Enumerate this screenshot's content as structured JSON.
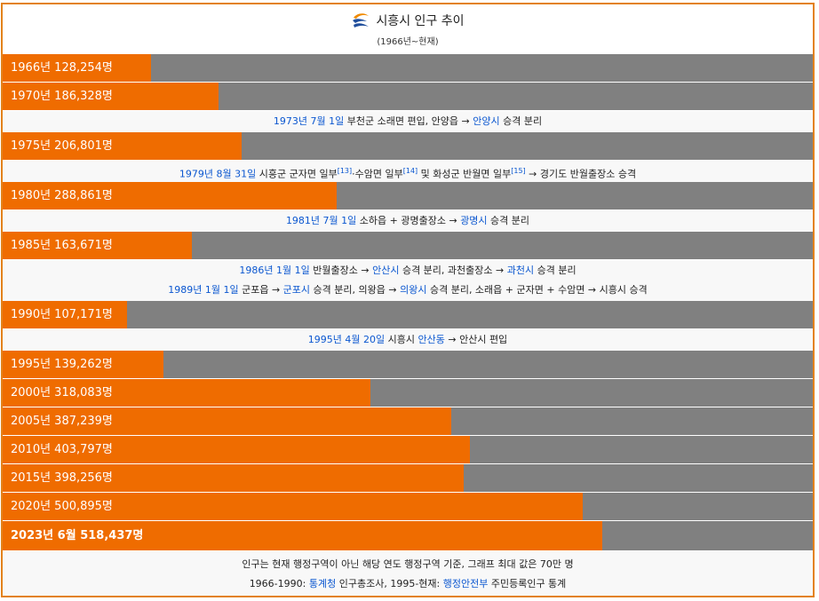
{
  "header": {
    "title": "시흥시 인구 추이",
    "subtitle": "(1966년~현재)"
  },
  "colors": {
    "bar": "#ef6c00",
    "track": "#808080",
    "link": "#0b57d0",
    "border": "#e3821a"
  },
  "chart_data": {
    "type": "bar",
    "max_value": 700000,
    "bars": [
      {
        "label": "1966년 128,254명",
        "year": 1966,
        "value": 128254
      },
      {
        "label": "1970년 186,328명",
        "year": 1970,
        "value": 186328
      },
      {
        "label": "1975년 206,801명",
        "year": 1975,
        "value": 206801
      },
      {
        "label": "1980년 288,861명",
        "year": 1980,
        "value": 288861
      },
      {
        "label": "1985년 163,671명",
        "year": 1985,
        "value": 163671
      },
      {
        "label": "1990년 107,171명",
        "year": 1990,
        "value": 107171
      },
      {
        "label": "1995년 139,262명",
        "year": 1995,
        "value": 139262
      },
      {
        "label": "2000년 318,083명",
        "year": 2000,
        "value": 318083
      },
      {
        "label": "2005년 387,239명",
        "year": 2005,
        "value": 387239
      },
      {
        "label": "2010년 403,797명",
        "year": 2010,
        "value": 403797
      },
      {
        "label": "2015년 398,256명",
        "year": 2015,
        "value": 398256
      },
      {
        "label": "2020년 500,895명",
        "year": 2020,
        "value": 500895
      },
      {
        "label": "2023년 6월 518,437명",
        "year": 2023,
        "value": 518437
      }
    ]
  },
  "notes": {
    "n1973": {
      "date": "1973년 7월 1일",
      "t1": " 부천군 소래면 편입, 안양읍 → ",
      "city": "안양시",
      "t2": " 승격 분리"
    },
    "n1979": {
      "date": "1979년 8월 31일",
      "t1": " 시흥군 군자면 일부",
      "ref1": "[13]",
      "t2": "·수암면 일부",
      "ref2": "[14]",
      "t3": " 및 화성군 반월면 일부",
      "ref3": "[15]",
      "t4": " → 경기도 반월출장소 승격"
    },
    "n1981": {
      "date": "1981년 7월 1일",
      "t1": " 소하읍 + 광명출장소 → ",
      "city": "광명시",
      "t2": " 승격 분리"
    },
    "n1986": {
      "date": "1986년 1월 1일",
      "t1": " 반월출장소 → ",
      "city1": "안산시",
      "t2": " 승격 분리, 과천출장소 → ",
      "city2": "과천시",
      "t3": " 승격 분리"
    },
    "n1989": {
      "date": "1989년 1월 1일",
      "t1": " 군포읍 → ",
      "city1": "군포시",
      "t2": " 승격 분리, 의왕읍 → ",
      "city2": "의왕시",
      "t3": " 승격 분리, 소래읍 + 군자면 + 수암면 → 시흥시 승격"
    },
    "n1995": {
      "date": "1995년 4월 20일",
      "t1": " 시흥시 ",
      "place": "안산동",
      "t2": " → 안산시 편입"
    }
  },
  "footer": {
    "line1": "인구는 현재 행정구역이 아닌 해당 연도 행정구역 기준, 그래프 최대 값은 70만 명",
    "l2_a": "1966-1990: ",
    "l2_link1": "통계청",
    "l2_b": " 인구총조사, 1995-현재: ",
    "l2_link2": "행정안전부",
    "l2_c": " 주민등록인구 통계"
  }
}
